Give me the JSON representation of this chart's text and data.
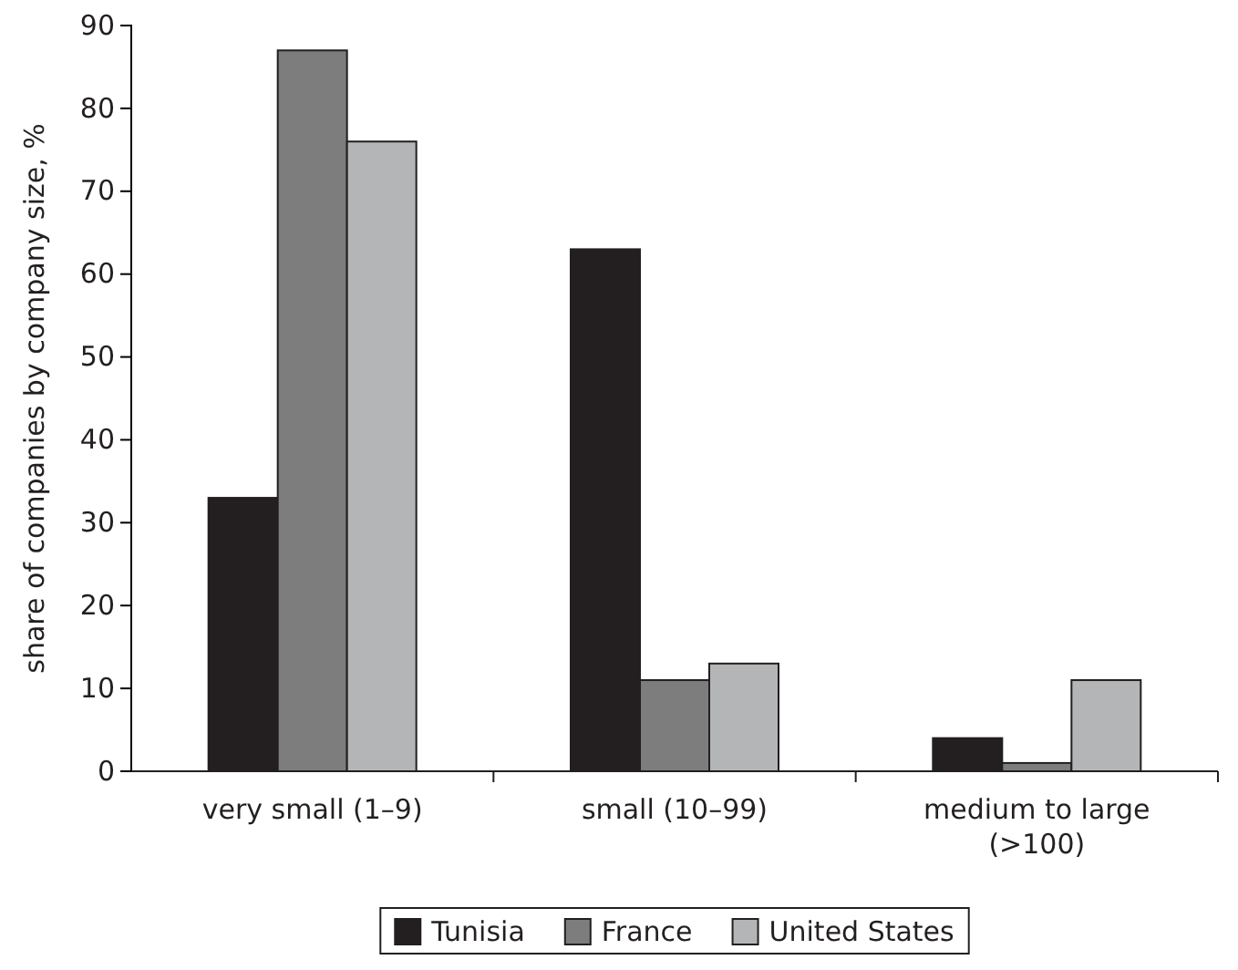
{
  "chart_data": {
    "type": "bar",
    "ylabel": "share of companies by company size, %",
    "categories": [
      "very small (1–9)",
      "small (10–99)",
      "medium to large (>100)"
    ],
    "series": [
      {
        "name": "Tunisia",
        "color": "#231f20",
        "values": [
          33,
          63,
          4
        ]
      },
      {
        "name": "France",
        "color": "#7d7d7d",
        "values": [
          87,
          11,
          1
        ]
      },
      {
        "name": "United States",
        "color": "#b3b5b7",
        "values": [
          76,
          13,
          11
        ]
      }
    ],
    "ylim": [
      0,
      90
    ],
    "yticks": [
      0,
      10,
      20,
      30,
      40,
      50,
      60,
      70,
      80,
      90
    ],
    "grid": false,
    "legend": "bottom"
  }
}
